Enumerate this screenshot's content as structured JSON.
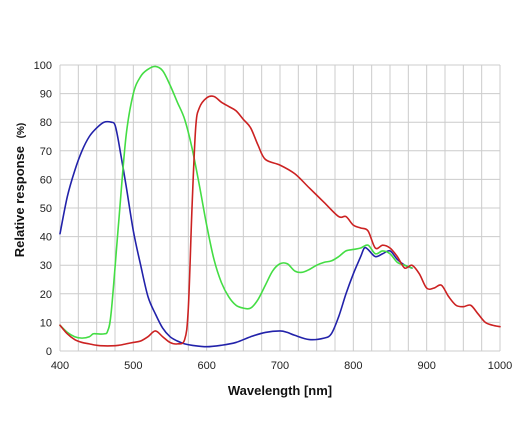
{
  "chart_data": {
    "type": "line",
    "title": "",
    "xlabel": "Wavelength [nm]",
    "ylabel": "Relative response",
    "ylabel_unit": "(%)",
    "xlim": [
      400,
      1000
    ],
    "ylim": [
      0,
      100
    ],
    "x_ticks": [
      "400",
      "500",
      "600",
      "700",
      "800",
      "900",
      "1000"
    ],
    "y_ticks": [
      "0",
      "10",
      "20",
      "30",
      "40",
      "50",
      "60",
      "70",
      "80",
      "90",
      "100"
    ],
    "grid": true,
    "legend": "none",
    "colors": {
      "blue": "#2222aa",
      "green": "#44dd44",
      "red": "#cc2222",
      "grid": "#cccccc"
    },
    "series": [
      {
        "color": "#2222aa",
        "x": [
          400,
          410,
          420,
          430,
          440,
          450,
          460,
          470,
          475,
          480,
          490,
          500,
          510,
          520,
          530,
          540,
          550,
          560,
          570,
          580,
          600,
          620,
          640,
          660,
          680,
          700,
          710,
          720,
          740,
          760,
          770,
          780,
          790,
          800,
          810,
          815,
          820,
          830,
          840,
          850,
          860,
          870,
          880
        ],
        "y": [
          41,
          54,
          63,
          70,
          75,
          78,
          80,
          80,
          79,
          73,
          58,
          42,
          30,
          19,
          13,
          8,
          5,
          3.5,
          2.5,
          2,
          1.5,
          2,
          3,
          5,
          6.5,
          7,
          6.5,
          5.5,
          4,
          4.5,
          6,
          12,
          20,
          27,
          33,
          36,
          35.5,
          33,
          34,
          35,
          32,
          30,
          29
        ]
      },
      {
        "color": "#44dd44",
        "x": [
          400,
          410,
          420,
          430,
          440,
          445,
          450,
          460,
          465,
          470,
          480,
          490,
          500,
          510,
          520,
          530,
          540,
          550,
          560,
          570,
          580,
          590,
          600,
          610,
          620,
          630,
          640,
          650,
          660,
          670,
          680,
          690,
          700,
          710,
          720,
          730,
          740,
          750,
          760,
          770,
          780,
          790,
          800,
          810,
          820,
          830,
          840,
          850,
          860,
          870,
          880
        ],
        "y": [
          9,
          6.5,
          5,
          4.5,
          5,
          6,
          6,
          6,
          7,
          14,
          45,
          75,
          90,
          96,
          98.5,
          99.5,
          98,
          93,
          87,
          81,
          71,
          58,
          44,
          32,
          24,
          19,
          16,
          15,
          15,
          18,
          23,
          28,
          30.5,
          30.5,
          28,
          27.5,
          28.5,
          30,
          31,
          31.5,
          33,
          35,
          35.5,
          36,
          37,
          34,
          35,
          34,
          31,
          30,
          29
        ]
      },
      {
        "color": "#cc2222",
        "x": [
          400,
          410,
          420,
          430,
          440,
          450,
          460,
          470,
          480,
          490,
          500,
          510,
          520,
          530,
          540,
          550,
          560,
          570,
          575,
          580,
          585,
          590,
          600,
          610,
          620,
          630,
          640,
          650,
          660,
          670,
          680,
          700,
          720,
          740,
          760,
          780,
          790,
          800,
          810,
          820,
          830,
          840,
          850,
          860,
          870,
          880,
          890,
          900,
          910,
          920,
          930,
          940,
          950,
          960,
          970,
          980,
          990,
          1000
        ],
        "y": [
          9,
          6,
          4,
          3,
          2.5,
          2,
          1.8,
          1.8,
          2,
          2.5,
          3,
          3.5,
          5,
          7,
          5,
          3,
          2.5,
          4,
          15,
          50,
          78,
          85,
          88.5,
          89,
          87,
          85.5,
          84,
          81,
          78,
          72,
          67,
          65,
          62,
          57,
          52,
          47,
          47,
          44,
          43,
          42,
          36,
          37,
          36,
          33,
          29,
          30,
          27,
          22,
          22,
          23,
          19,
          16,
          15.5,
          16,
          13,
          10,
          9,
          8.5
        ]
      }
    ]
  }
}
